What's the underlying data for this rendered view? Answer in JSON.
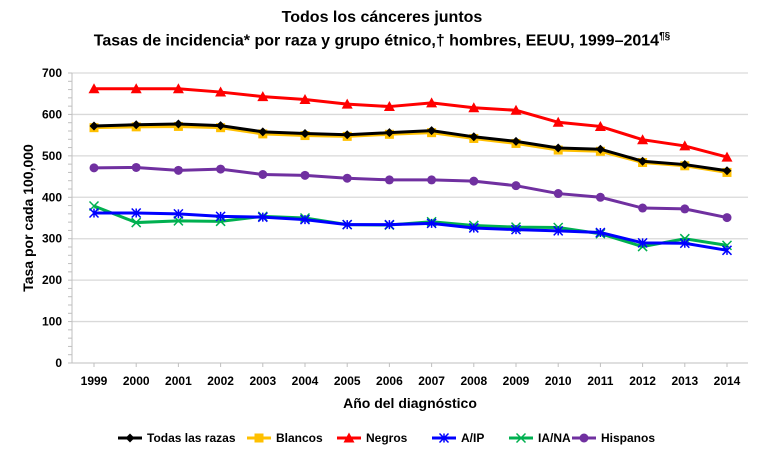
{
  "chart_data": {
    "type": "line",
    "title": "Todos los cánceres juntos",
    "subtitle": "Tasas de incidencia* por raza y grupo étnico,† hombres, EEUU, 1999–2014",
    "subtitle_sup": "¶§",
    "xlabel": "Año del diagnóstico",
    "ylabel": "Tasa por cada 100,000",
    "ylim": [
      0,
      700
    ],
    "yticks": [
      0,
      100,
      200,
      300,
      400,
      500,
      600,
      700
    ],
    "grid": true,
    "legend": "bottom",
    "x": [
      "1999",
      "2000",
      "2001",
      "2002",
      "2003",
      "2004",
      "2005",
      "2006",
      "2007",
      "2008",
      "2009",
      "2010",
      "2011",
      "2012",
      "2013",
      "2014"
    ],
    "series": [
      {
        "name": "Todas las razas",
        "color": "#000000",
        "marker": "diamond",
        "values": [
          572,
          575,
          577,
          573,
          558,
          554,
          551,
          556,
          561,
          546,
          535,
          519,
          516,
          487,
          479,
          464
        ]
      },
      {
        "name": "Blancos",
        "color": "#FFC000",
        "marker": "square",
        "values": [
          568,
          570,
          571,
          568,
          553,
          549,
          547,
          552,
          556,
          542,
          530,
          514,
          511,
          484,
          476,
          460
        ]
      },
      {
        "name": "Negros",
        "color": "#FF0000",
        "marker": "triangle",
        "values": [
          662,
          662,
          662,
          654,
          643,
          636,
          625,
          619,
          628,
          616,
          610,
          581,
          571,
          539,
          524,
          497
        ]
      },
      {
        "name": "A/IP",
        "color": "#0000FF",
        "marker": "star",
        "values": [
          362,
          362,
          360,
          354,
          352,
          346,
          334,
          334,
          337,
          326,
          322,
          319,
          315,
          290,
          289,
          272
        ]
      },
      {
        "name": "IA/NA",
        "color": "#00B050",
        "marker": "x",
        "values": [
          379,
          339,
          343,
          342,
          354,
          350,
          334,
          333,
          341,
          332,
          328,
          327,
          312,
          281,
          300,
          284
        ]
      },
      {
        "name": "Hispanos",
        "color": "#7030A0",
        "marker": "circle",
        "values": [
          471,
          472,
          465,
          468,
          455,
          453,
          446,
          442,
          442,
          439,
          428,
          409,
          400,
          374,
          372,
          351
        ]
      }
    ]
  }
}
